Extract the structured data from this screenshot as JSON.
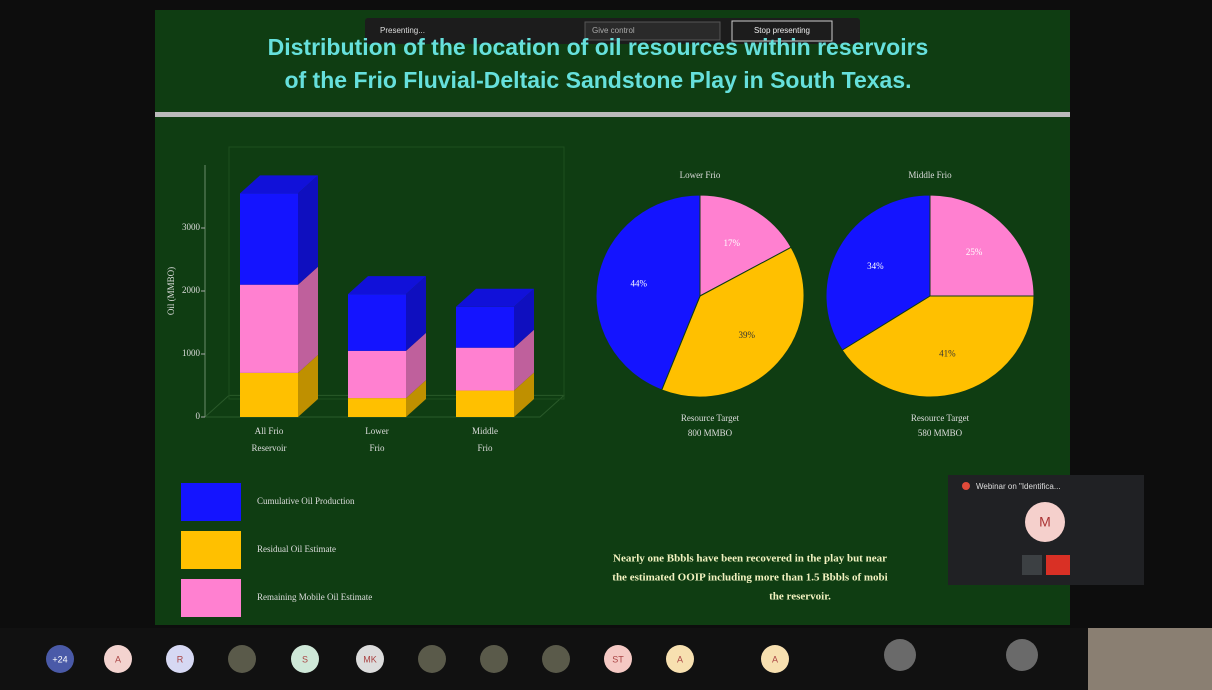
{
  "toolbar": {
    "status": "Presenting...",
    "control": "Give control",
    "stop": "Stop presenting"
  },
  "slide": {
    "title_lines": [
      "Distribution of the location of oil resources within reservoirs",
      "of the Frio Fluvial-Deltaic Sandstone Play in South Texas."
    ],
    "bar_chart": {
      "y_axis_label": "Oil (MMBO)",
      "ylim": [
        0,
        4000
      ],
      "yticks": [
        0,
        1000,
        2000,
        3000
      ],
      "categories": [
        [
          "All Frio",
          "Reservoir"
        ],
        [
          "Lower",
          "Frio"
        ],
        [
          "Middle",
          "Frio"
        ]
      ],
      "series": [
        {
          "name": "Residual Oil Estimate",
          "color": "#ffc000",
          "values": [
            700,
            300,
            420
          ]
        },
        {
          "name": "Remaining Mobile Oil Estimate",
          "color": "#ff80d0",
          "values": [
            1400,
            750,
            680
          ]
        },
        {
          "name": "Cumulative Oil Production",
          "color": "#1414ff",
          "values": [
            1450,
            900,
            650
          ]
        }
      ]
    },
    "pies": [
      {
        "title": "Lower Frio",
        "caption": [
          "Resource Target",
          "800 MMBO"
        ],
        "values": [
          17,
          39,
          44
        ],
        "value_labels": [
          "17%",
          "39%",
          "44%"
        ],
        "colors": [
          "#ff80d0",
          "#ffc000",
          "#1414ff"
        ]
      },
      {
        "title": "Middle Frio",
        "caption": [
          "Resource Target",
          "580 MMBO"
        ],
        "values": [
          25,
          41,
          34
        ],
        "value_labels": [
          "25%",
          "41%",
          "34%"
        ],
        "colors": [
          "#ff80d0",
          "#ffc000",
          "#1414ff"
        ]
      }
    ],
    "note": [
      "Nearly one Bbbls have been recovered in the play but near",
      "the estimated OOIP including more than 1.5 Bbbls of mobi",
      "the reservoir."
    ]
  },
  "webinar": {
    "title": "Webinar on \"Identifica...",
    "avatar": "M"
  },
  "participants": [
    "+24",
    "A",
    "R",
    "S",
    "MK",
    "ST",
    "A",
    "A"
  ]
}
